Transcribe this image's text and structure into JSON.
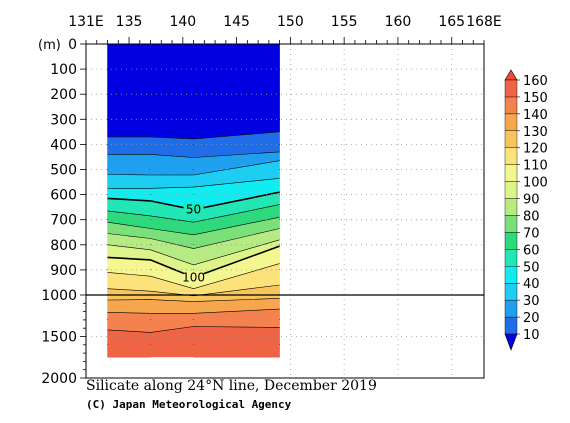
{
  "chart_data": {
    "type": "heatmap",
    "title": "Silicate along 24°N line, December 2019",
    "credit": "(C) Japan Meteorological Agency",
    "depth_unit_label": "(m)",
    "x_tick_labels": [
      {
        "lon": 131,
        "label": "131E"
      },
      {
        "lon": 135,
        "label": "135"
      },
      {
        "lon": 140,
        "label": "140"
      },
      {
        "lon": 145,
        "label": "145"
      },
      {
        "lon": 150,
        "label": "150"
      },
      {
        "lon": 155,
        "label": "155"
      },
      {
        "lon": 160,
        "label": "160"
      },
      {
        "lon": 165,
        "label": "165"
      },
      {
        "lon": 168,
        "label": "168E"
      }
    ],
    "x_range": [
      131,
      168
    ],
    "y_tick_labels": [
      {
        "depth": 0,
        "label": "0"
      },
      {
        "depth": 100,
        "label": "100"
      },
      {
        "depth": 200,
        "label": "200"
      },
      {
        "depth": 300,
        "label": "300"
      },
      {
        "depth": 400,
        "label": "400"
      },
      {
        "depth": 500,
        "label": "500"
      },
      {
        "depth": 600,
        "label": "600"
      },
      {
        "depth": 700,
        "label": "700"
      },
      {
        "depth": 800,
        "label": "800"
      },
      {
        "depth": 900,
        "label": "900"
      },
      {
        "depth": 1000,
        "label": "1000"
      },
      {
        "depth": 1500,
        "label": "1500"
      },
      {
        "depth": 2000,
        "label": "2000"
      }
    ],
    "y_scale": "linear 0–1000 m (upper panel), linear 1000–2000 m (lower panel, compressed)",
    "station_longitudes": [
      133,
      137,
      141,
      149
    ],
    "data_extent": {
      "lon": [
        133,
        149
      ],
      "max_depth_west": 1750,
      "max_depth_east": 1750,
      "gap": {
        "lon": [
          137,
          141
        ],
        "max_depth": 2000
      }
    },
    "contour_depths": [
      {
        "level": 10,
        "depths": [
          370,
          370,
          378,
          350
        ]
      },
      {
        "level": 20,
        "depths": [
          440,
          440,
          452,
          430
        ]
      },
      {
        "level": 30,
        "depths": [
          520,
          522,
          522,
          465
        ]
      },
      {
        "level": 40,
        "depths": [
          575,
          575,
          570,
          535
        ]
      },
      {
        "level": 50,
        "depths": [
          615,
          625,
          660,
          590
        ]
      },
      {
        "level": 60,
        "depths": [
          665,
          685,
          710,
          640
        ]
      },
      {
        "level": 70,
        "depths": [
          710,
          735,
          760,
          690
        ]
      },
      {
        "level": 80,
        "depths": [
          755,
          775,
          815,
          735
        ]
      },
      {
        "level": 90,
        "depths": [
          800,
          820,
          880,
          780
        ]
      },
      {
        "level": 100,
        "depths": [
          850,
          860,
          930,
          805
        ]
      },
      {
        "level": 110,
        "depths": [
          910,
          925,
          975,
          875
        ]
      },
      {
        "level": 120,
        "depths": [
          975,
          985,
          1010,
          960
        ]
      },
      {
        "level": 130,
        "depths": [
          1060,
          1055,
          1080,
          1040
        ]
      },
      {
        "level": 140,
        "depths": [
          1210,
          1220,
          1220,
          1170
        ]
      },
      {
        "level": 150,
        "depths": [
          1420,
          1450,
          1380,
          1390
        ]
      }
    ],
    "labeled_contours": [
      {
        "level": 50,
        "label": "50",
        "lon": 141
      },
      {
        "level": 100,
        "label": "100",
        "lon": 141
      }
    ],
    "colorbar": {
      "levels": [
        10,
        20,
        30,
        40,
        50,
        60,
        70,
        80,
        90,
        100,
        110,
        120,
        130,
        140,
        150,
        160
      ],
      "labels": [
        "10",
        "20",
        "30",
        "40",
        "50",
        "60",
        "70",
        "80",
        "90",
        "100",
        "110",
        "120",
        "130",
        "140",
        "150",
        "160"
      ],
      "colors": [
        "#0000e0",
        "#1f6ee8",
        "#1ea0ee",
        "#1ecdf2",
        "#10ecf0",
        "#22e6b4",
        "#2ed87c",
        "#7ae07a",
        "#b6ea82",
        "#dcf48a",
        "#f4f690",
        "#fce27a",
        "#f8c45c",
        "#f8a64e",
        "#f4824e",
        "#f06446",
        "#f04a38"
      ],
      "extend": "both"
    },
    "surface_color": "#0000e0"
  }
}
